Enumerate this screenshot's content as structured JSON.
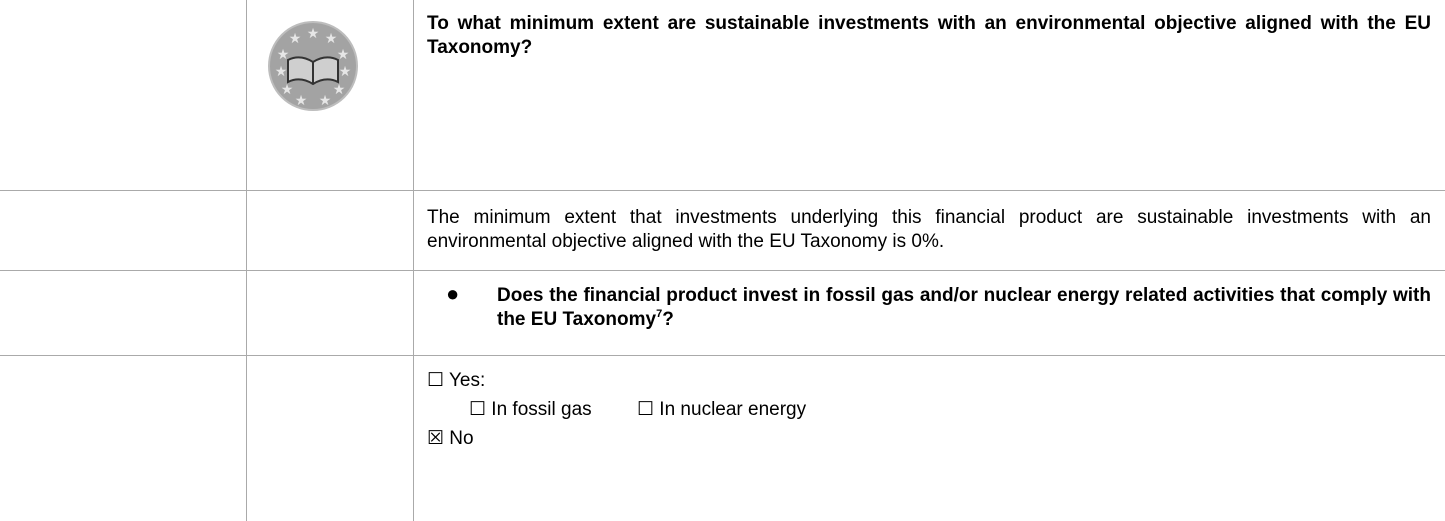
{
  "question": "To what minimum extent are sustainable investments with an environmental objective aligned with the EU Taxonomy?",
  "answer": "The minimum extent that investments underlying this financial product are sustainable investments with an environmental objective aligned with the EU Taxonomy is 0%.",
  "sub_question": {
    "text": "Does the financial product invest in fossil gas and/or nuclear energy related activities that comply with the EU Taxonomy",
    "footnote": "7",
    "end": "?"
  },
  "options": {
    "yes": "☐ Yes:",
    "fossil_gas": "☐ In fossil gas",
    "nuclear": "☐ In nuclear energy",
    "no": "☒ No"
  }
}
